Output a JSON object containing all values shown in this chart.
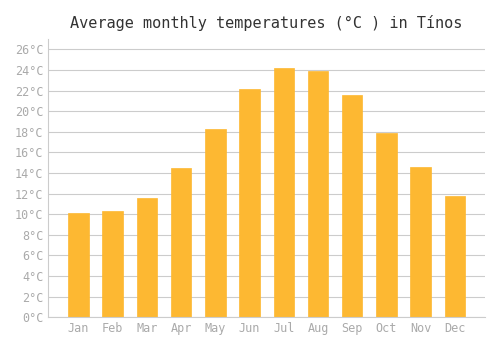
{
  "title": "Average monthly temperatures (°C ) in Tínos",
  "months": [
    "Jan",
    "Feb",
    "Mar",
    "Apr",
    "May",
    "Jun",
    "Jul",
    "Aug",
    "Sep",
    "Oct",
    "Nov",
    "Dec"
  ],
  "values": [
    10.1,
    10.3,
    11.6,
    14.5,
    18.3,
    22.2,
    24.2,
    23.9,
    21.6,
    17.9,
    14.6,
    11.8
  ],
  "bar_color": "#FDB832",
  "bar_edge_color": "#FDB832",
  "background_color": "#FFFFFF",
  "grid_color": "#CCCCCC",
  "ylabel_ticks": [
    "0°C",
    "2°C",
    "4°C",
    "6°C",
    "8°C",
    "10°C",
    "12°C",
    "14°C",
    "16°C",
    "18°C",
    "20°C",
    "22°C",
    "24°C",
    "26°C"
  ],
  "ytick_values": [
    0,
    2,
    4,
    6,
    8,
    10,
    12,
    14,
    16,
    18,
    20,
    22,
    24,
    26
  ],
  "ylim": [
    0,
    27
  ],
  "title_fontsize": 11,
  "tick_fontsize": 8.5,
  "tick_color": "#AAAAAA",
  "spine_color": "#CCCCCC"
}
